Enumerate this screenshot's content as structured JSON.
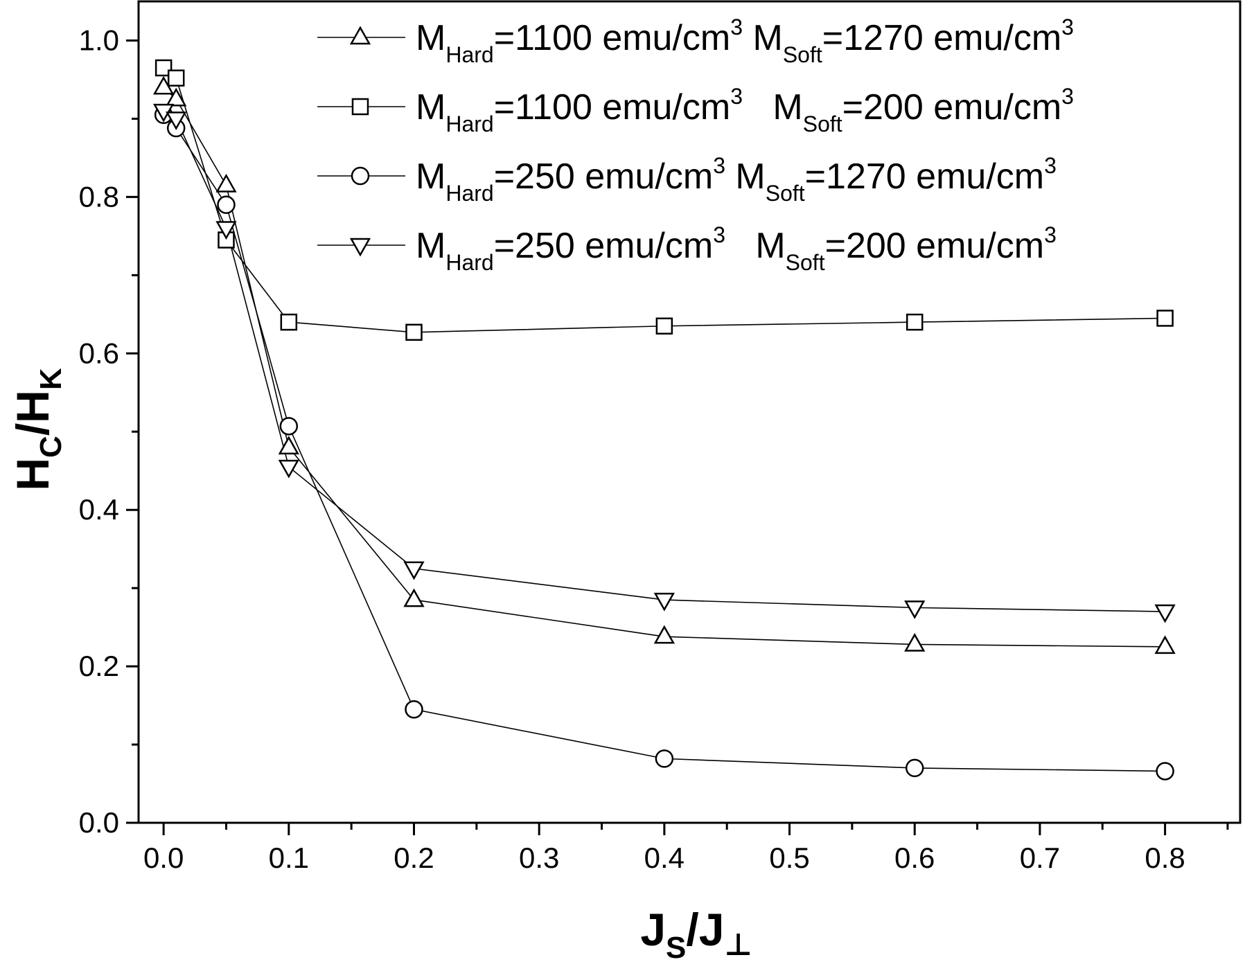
{
  "chart_data": {
    "type": "line",
    "xlabel": {
      "main": "J",
      "sub": "S",
      "rest": "/J",
      "op": "⊥"
    },
    "ylabel": {
      "main": "H",
      "sub": "C",
      "rest": "/H",
      "sub2": "K"
    },
    "xlim": [
      -0.02,
      0.86
    ],
    "ylim": [
      0.0,
      1.05
    ],
    "x_ticks": [
      0.0,
      0.1,
      0.2,
      0.3,
      0.4,
      0.5,
      0.6,
      0.7,
      0.8
    ],
    "x_tick_labels": [
      "0.0",
      "0.1",
      "0.2",
      "0.3",
      "0.4",
      "0.5",
      "0.6",
      "0.7",
      "0.8"
    ],
    "x_minor_ticks": [
      0.05,
      0.15,
      0.25,
      0.35,
      0.45,
      0.55,
      0.65,
      0.75,
      0.85
    ],
    "y_ticks": [
      0.0,
      0.2,
      0.4,
      0.6,
      0.8,
      1.0
    ],
    "y_tick_labels": [
      "0.0",
      "0.2",
      "0.4",
      "0.6",
      "0.8",
      "1.0"
    ],
    "y_minor_ticks": [
      0.1,
      0.3,
      0.5,
      0.7,
      0.9
    ],
    "grid": false,
    "legend_position": "top-right",
    "series": [
      {
        "name": "MHard=1100 emu/cm3 MSoft=1270 emu/cm3",
        "marker": "triangle-up",
        "legend": {
          "m1": "M",
          "s1": "Hard",
          "t1": "=1100 emu/cm",
          "e1": "3",
          "m2": " M",
          "s2": "Soft",
          "t2": "=1270 emu/cm",
          "e2": "3"
        },
        "x": [
          0.0,
          0.01,
          0.05,
          0.1,
          0.2,
          0.4,
          0.6,
          0.8
        ],
        "y": [
          0.94,
          0.925,
          0.815,
          0.48,
          0.285,
          0.238,
          0.228,
          0.225
        ]
      },
      {
        "name": "MHard=1100 emu/cm3 MSoft=200 emu/cm3",
        "marker": "square",
        "legend": {
          "m1": "M",
          "s1": "Hard",
          "t1": "=1100 emu/cm",
          "e1": "3",
          "m2": "   M",
          "s2": "Soft",
          "t2": "=200 emu/cm",
          "e2": "3"
        },
        "x": [
          0.0,
          0.01,
          0.05,
          0.1,
          0.2,
          0.4,
          0.6,
          0.8
        ],
        "y": [
          0.965,
          0.952,
          0.745,
          0.64,
          0.627,
          0.635,
          0.64,
          0.645
        ]
      },
      {
        "name": "MHard=250 emu/cm3 MSoft=1270 emu/cm3",
        "marker": "circle",
        "legend": {
          "m1": "M",
          "s1": "Hard",
          "t1": "=250 emu/cm",
          "e1": "3",
          "m2": " M",
          "s2": "Soft",
          "t2": "=1270 emu/cm",
          "e2": "3"
        },
        "x": [
          0.0,
          0.01,
          0.05,
          0.1,
          0.2,
          0.4,
          0.6,
          0.8
        ],
        "y": [
          0.905,
          0.888,
          0.79,
          0.507,
          0.145,
          0.082,
          0.07,
          0.066
        ]
      },
      {
        "name": "MHard=250 emu/cm3 MSoft=200 emu/cm3",
        "marker": "triangle-down",
        "legend": {
          "m1": "M",
          "s1": "Hard",
          "t1": "=250 emu/cm",
          "e1": "3",
          "m2": "   M",
          "s2": "Soft",
          "t2": "=200 emu/cm",
          "e2": "3"
        },
        "x": [
          0.0,
          0.01,
          0.05,
          0.1,
          0.2,
          0.4,
          0.6,
          0.8
        ],
        "y": [
          0.91,
          0.9,
          0.76,
          0.455,
          0.325,
          0.285,
          0.275,
          0.27
        ]
      }
    ]
  }
}
